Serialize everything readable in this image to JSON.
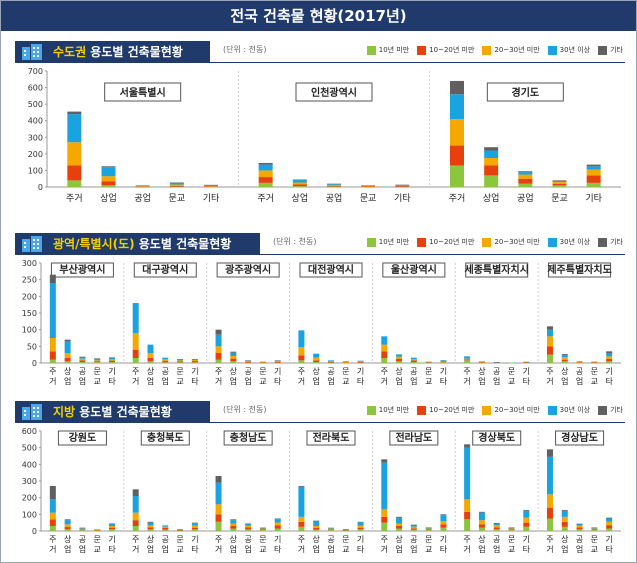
{
  "title": "전국 건축물 현황(2017년)",
  "legend": {
    "unit": "(단위 : 천동)",
    "items": [
      {
        "label": "10년 미만",
        "color": "#8cc63f"
      },
      {
        "label": "10~20년 미만",
        "color": "#e8400c"
      },
      {
        "label": "20~30년 미만",
        "color": "#f5a800"
      },
      {
        "label": "30년 이상",
        "color": "#1aa3e0"
      },
      {
        "label": "기타",
        "color": "#606060"
      }
    ]
  },
  "chart_data": [
    {
      "type": "bar",
      "title": "수도권 용도별 건축물현황",
      "title_highlight": "수도권",
      "title_rest": " 용도별 건축물현황",
      "stacked": true,
      "ylim": [
        0,
        700
      ],
      "yticks": [
        0,
        100,
        200,
        300,
        400,
        500,
        600,
        700
      ],
      "categories": [
        "주거",
        "상업",
        "공업",
        "문교",
        "기타"
      ],
      "series_names": [
        "10년 미만",
        "10~20년 미만",
        "20~30년 미만",
        "30년 이상",
        "기타"
      ],
      "groups": [
        {
          "name": "서울특별시",
          "bars": [
            [
              40,
              90,
              140,
              170,
              15
            ],
            [
              10,
              25,
              30,
              55,
              5
            ],
            [
              0,
              2,
              3,
              5,
              0
            ],
            [
              2,
              5,
              8,
              10,
              2
            ],
            [
              1,
              3,
              3,
              5,
              1
            ]
          ]
        },
        {
          "name": "인천광역시",
          "bars": [
            [
              25,
              35,
              40,
              35,
              10
            ],
            [
              5,
              10,
              12,
              15,
              3
            ],
            [
              3,
              5,
              5,
              5,
              2
            ],
            [
              1,
              2,
              3,
              4,
              0
            ],
            [
              2,
              4,
              3,
              3,
              2
            ]
          ]
        },
        {
          "name": "경기도",
          "bars": [
            [
              130,
              120,
              160,
              150,
              80
            ],
            [
              70,
              60,
              45,
              45,
              20
            ],
            [
              20,
              30,
              25,
              15,
              5
            ],
            [
              10,
              10,
              10,
              5,
              5
            ],
            [
              25,
              45,
              35,
              20,
              10
            ]
          ]
        }
      ]
    },
    {
      "type": "bar",
      "title": "광역/특별시(도) 용도별 건축물현황",
      "title_highlight": "광역/특별시(도)",
      "title_rest": " 용도별 건축물현황",
      "stacked": true,
      "ylim": [
        0,
        300
      ],
      "yticks": [
        0,
        50,
        100,
        150,
        200,
        250,
        300
      ],
      "categories": [
        "주거",
        "상업",
        "공업",
        "문교",
        "기타"
      ],
      "series_names": [
        "10년 미만",
        "10~20년 미만",
        "20~30년 미만",
        "30년 이상",
        "기타"
      ],
      "groups": [
        {
          "name": "부산광역시",
          "bars": [
            [
              10,
              25,
              40,
              165,
              25
            ],
            [
              5,
              10,
              15,
              35,
              5
            ],
            [
              3,
              5,
              5,
              5,
              1
            ],
            [
              2,
              3,
              3,
              5,
              1
            ],
            [
              3,
              4,
              4,
              5,
              1
            ]
          ]
        },
        {
          "name": "대구광역시",
          "bars": [
            [
              15,
              25,
              50,
              90,
              0
            ],
            [
              5,
              10,
              15,
              25,
              0
            ],
            [
              2,
              4,
              5,
              5,
              0
            ],
            [
              2,
              3,
              3,
              4,
              0
            ],
            [
              2,
              4,
              3,
              3,
              0
            ]
          ]
        },
        {
          "name": "광주광역시",
          "bars": [
            [
              10,
              20,
              20,
              35,
              15
            ],
            [
              5,
              8,
              8,
              10,
              3
            ],
            [
              1,
              2,
              2,
              2,
              1
            ],
            [
              1,
              1,
              1,
              1,
              0
            ],
            [
              1,
              2,
              2,
              2,
              1
            ]
          ]
        },
        {
          "name": "대전광역시",
          "bars": [
            [
              8,
              15,
              25,
              50,
              0
            ],
            [
              3,
              5,
              8,
              12,
              0
            ],
            [
              1,
              2,
              2,
              3,
              0
            ],
            [
              1,
              1,
              1,
              2,
              0
            ],
            [
              1,
              2,
              2,
              2,
              0
            ]
          ]
        },
        {
          "name": "울산광역시",
          "bars": [
            [
              15,
              20,
              20,
              25,
              0
            ],
            [
              5,
              7,
              7,
              7,
              0
            ],
            [
              3,
              5,
              4,
              4,
              0
            ],
            [
              1,
              1,
              1,
              1,
              0
            ],
            [
              2,
              3,
              2,
              2,
              0
            ]
          ]
        },
        {
          "name": "세종특별자치시",
          "bars": [
            [
              8,
              3,
              2,
              7,
              0
            ],
            [
              2,
              1,
              1,
              1,
              0
            ],
            [
              1,
              1,
              0,
              1,
              0
            ],
            [
              1,
              0,
              0,
              0,
              0
            ],
            [
              1,
              1,
              1,
              1,
              0
            ]
          ]
        },
        {
          "name": "제주특별자치도",
          "bars": [
            [
              25,
              25,
              30,
              20,
              10
            ],
            [
              5,
              5,
              8,
              7,
              2
            ],
            [
              1,
              1,
              1,
              2,
              0
            ],
            [
              1,
              1,
              1,
              1,
              0
            ],
            [
              5,
              7,
              8,
              10,
              5
            ]
          ]
        }
      ]
    },
    {
      "type": "bar",
      "title": "지방 용도별 건축물현황",
      "title_highlight": "지방",
      "title_rest": " 용도별 건축물현황",
      "stacked": true,
      "ylim": [
        0,
        600
      ],
      "yticks": [
        0,
        100,
        200,
        300,
        400,
        500,
        600
      ],
      "categories": [
        "주거",
        "상업",
        "공업",
        "문교",
        "기타"
      ],
      "series_names": [
        "10년 미만",
        "10~20년 미만",
        "20~30년 미만",
        "30년 이상",
        "기타"
      ],
      "groups": [
        {
          "name": "강원도",
          "bars": [
            [
              30,
              40,
              40,
              80,
              80
            ],
            [
              10,
              15,
              15,
              25,
              5
            ],
            [
              5,
              5,
              4,
              4,
              2
            ],
            [
              3,
              3,
              2,
              2,
              0
            ],
            [
              10,
              10,
              10,
              12,
              3
            ]
          ]
        },
        {
          "name": "충청북도",
          "bars": [
            [
              30,
              35,
              45,
              100,
              40
            ],
            [
              10,
              12,
              12,
              16,
              5
            ],
            [
              8,
              10,
              8,
              5,
              2
            ],
            [
              3,
              3,
              3,
              3,
              0
            ],
            [
              10,
              10,
              12,
              15,
              3
            ]
          ]
        },
        {
          "name": "충청남도",
          "bars": [
            [
              55,
              45,
              60,
              130,
              40
            ],
            [
              15,
              15,
              15,
              20,
              5
            ],
            [
              10,
              12,
              10,
              10,
              3
            ],
            [
              5,
              5,
              5,
              4,
              1
            ],
            [
              15,
              18,
              18,
              20,
              4
            ]
          ]
        },
        {
          "name": "전라북도",
          "bars": [
            [
              25,
              30,
              30,
              180,
              5
            ],
            [
              8,
              10,
              12,
              30,
              2
            ],
            [
              5,
              5,
              5,
              5,
              0
            ],
            [
              3,
              3,
              3,
              3,
              0
            ],
            [
              10,
              10,
              12,
              20,
              3
            ]
          ]
        },
        {
          "name": "전라남도",
          "bars": [
            [
              50,
              35,
              45,
              280,
              20
            ],
            [
              15,
              15,
              15,
              35,
              5
            ],
            [
              8,
              8,
              10,
              10,
              2
            ],
            [
              5,
              5,
              5,
              5,
              1
            ],
            [
              20,
              20,
              20,
              35,
              5
            ]
          ]
        },
        {
          "name": "경상북도",
          "bars": [
            [
              70,
              45,
              75,
              310,
              20
            ],
            [
              20,
              20,
              25,
              45,
              5
            ],
            [
              10,
              12,
              12,
              12,
              2
            ],
            [
              5,
              5,
              5,
              5,
              1
            ],
            [
              25,
              25,
              30,
              40,
              5
            ]
          ]
        },
        {
          "name": "경상남도",
          "bars": [
            [
              75,
              65,
              80,
              225,
              45
            ],
            [
              25,
              30,
              30,
              35,
              5
            ],
            [
              10,
              12,
              10,
              10,
              2
            ],
            [
              5,
              5,
              5,
              5,
              1
            ],
            [
              15,
              20,
              20,
              20,
              5
            ]
          ]
        }
      ]
    }
  ]
}
